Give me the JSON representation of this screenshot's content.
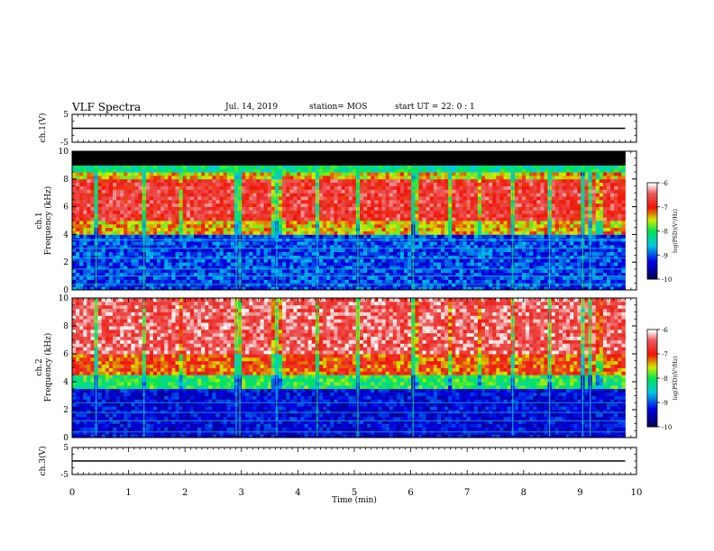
{
  "header": {
    "title": "VLF Spectra",
    "date": "Jul. 14, 2019",
    "station": "station= MOS",
    "start": "start UT = 22: 0 : 1"
  },
  "chart_data": [
    {
      "type": "line",
      "name": "ch1-voltage",
      "ylabel": "ch.1(V)",
      "ylim": [
        -5,
        5
      ],
      "yticks": [
        -5,
        5
      ],
      "xlim": [
        0,
        10
      ],
      "series": [
        {
          "x": [
            0,
            9.8
          ],
          "y": [
            0,
            0
          ]
        }
      ]
    },
    {
      "type": "heatmap",
      "name": "ch1-spectrogram",
      "ylabel": "ch.1 Frequency (kHz)",
      "ylim": [
        0,
        10
      ],
      "yticks": [
        0,
        2,
        4,
        6,
        8,
        10
      ],
      "xlim": [
        0,
        10
      ],
      "data_extent_min": 9.8,
      "signal_top_khz": 9.0,
      "intense_band_khz": [
        5.0,
        8.0
      ],
      "colorbar": {
        "label": "log(PSD)(V²/Hz)",
        "ticks": [
          "-6",
          "-7",
          "-8",
          "-9",
          "-10"
        ],
        "range": [
          -10,
          -6
        ]
      }
    },
    {
      "type": "heatmap",
      "name": "ch2-spectrogram",
      "ylabel": "ch.2 Frequency (kHz)",
      "ylim": [
        0,
        10
      ],
      "yticks": [
        0,
        2,
        4,
        6,
        8,
        10
      ],
      "xlim": [
        0,
        10
      ],
      "data_extent_min": 9.8,
      "intense_band_khz": [
        4.5,
        10.0
      ],
      "colorbar": {
        "label": "log(PSD)(V²/Hz)",
        "ticks": [
          "-6",
          "-7",
          "-8",
          "-9",
          "-10"
        ],
        "range": [
          -10,
          -6
        ]
      }
    },
    {
      "type": "line",
      "name": "ch3-voltage",
      "ylabel": "ch.3(V)",
      "ylim": [
        -5,
        5
      ],
      "yticks": [
        -5,
        5
      ],
      "xlim": [
        0,
        10
      ],
      "xlabel": "Time (min)",
      "xticks": [
        0,
        1,
        2,
        3,
        4,
        5,
        6,
        7,
        8,
        9,
        10
      ],
      "series": [
        {
          "x": [
            0,
            9.8
          ],
          "y": [
            0,
            0
          ]
        }
      ]
    }
  ]
}
